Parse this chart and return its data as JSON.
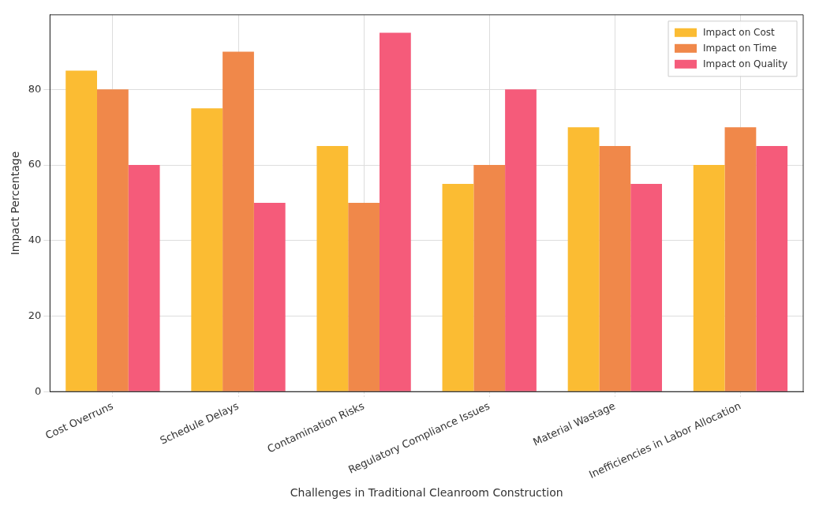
{
  "chart_data": {
    "type": "bar",
    "xlabel": "Challenges in Traditional Cleanroom Construction",
    "ylabel": "Impact Percentage",
    "categories": [
      "Cost Overruns",
      "Schedule Delays",
      "Contamination Risks",
      "Regulatory Compliance Issues",
      "Material Wastage",
      "Inefficiencies in Labor Allocation"
    ],
    "series": [
      {
        "name": "Impact on Cost",
        "color": "#fbbc33",
        "values": [
          85,
          75,
          65,
          55,
          70,
          60
        ]
      },
      {
        "name": "Impact on Time",
        "color": "#f0884a",
        "values": [
          80,
          90,
          50,
          60,
          65,
          70
        ]
      },
      {
        "name": "Impact on Quality",
        "color": "#f55b7a",
        "values": [
          60,
          50,
          95,
          80,
          55,
          65
        ]
      }
    ],
    "ylim": [
      0,
      99.75
    ],
    "yticks": [
      0,
      20,
      40,
      60,
      80
    ],
    "grid": true,
    "legend": "top right"
  }
}
